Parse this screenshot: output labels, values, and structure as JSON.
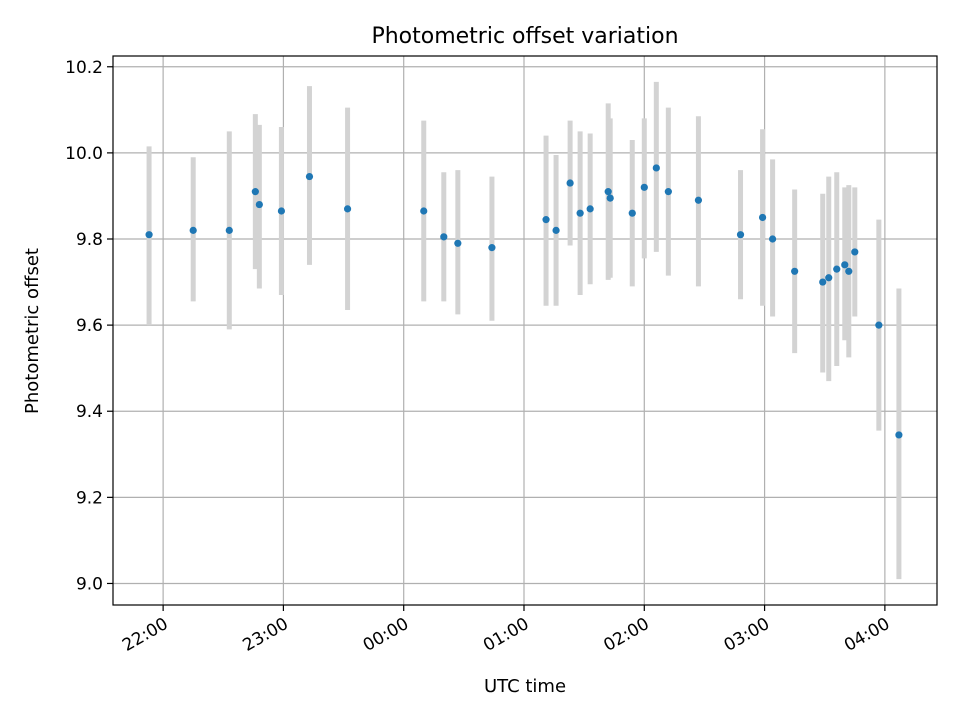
{
  "chart_data": {
    "type": "scatter",
    "title": "Photometric offset variation",
    "xlabel": "UTC time",
    "ylabel": "Photometric offset",
    "x_unit": "UTC time (hours, 21:00 = 21.0, 04:00 = 28.0)",
    "xlim": [
      "21:35",
      "04:26"
    ],
    "ylim": [
      8.95,
      10.225
    ],
    "x_ticks": [
      "22:00",
      "23:00",
      "00:00",
      "01:00",
      "02:00",
      "03:00",
      "04:00"
    ],
    "y_ticks": [
      "9.0",
      "9.2",
      "9.4",
      "9.6",
      "9.8",
      "10.0",
      "10.2"
    ],
    "grid": true,
    "colors": {
      "marker": "#1f77b4",
      "error_bar": "#d3d3d3",
      "grid": "#b0b0b0"
    },
    "series": [
      {
        "points": [
          {
            "x": "21:53",
            "y": 9.81,
            "lo": 9.6,
            "hi": 10.015
          },
          {
            "x": "22:15",
            "y": 9.82,
            "lo": 9.655,
            "hi": 9.99
          },
          {
            "x": "22:33",
            "y": 9.82,
            "lo": 9.59,
            "hi": 10.05
          },
          {
            "x": "22:46",
            "y": 9.91,
            "lo": 9.73,
            "hi": 10.09
          },
          {
            "x": "22:48",
            "y": 9.88,
            "lo": 9.685,
            "hi": 10.065
          },
          {
            "x": "22:59",
            "y": 9.865,
            "lo": 9.67,
            "hi": 10.06
          },
          {
            "x": "23:13",
            "y": 9.945,
            "lo": 9.74,
            "hi": 10.155
          },
          {
            "x": "23:32",
            "y": 9.87,
            "lo": 9.635,
            "hi": 10.105
          },
          {
            "x": "00:10",
            "y": 9.865,
            "lo": 9.655,
            "hi": 10.075
          },
          {
            "x": "00:20",
            "y": 9.805,
            "lo": 9.655,
            "hi": 9.955
          },
          {
            "x": "00:27",
            "y": 9.79,
            "lo": 9.625,
            "hi": 9.96
          },
          {
            "x": "00:44",
            "y": 9.78,
            "lo": 9.61,
            "hi": 9.945
          },
          {
            "x": "01:11",
            "y": 9.845,
            "lo": 9.645,
            "hi": 10.04
          },
          {
            "x": "01:16",
            "y": 9.82,
            "lo": 9.645,
            "hi": 9.995
          },
          {
            "x": "01:23",
            "y": 9.93,
            "lo": 9.785,
            "hi": 10.075
          },
          {
            "x": "01:28",
            "y": 9.86,
            "lo": 9.67,
            "hi": 10.05
          },
          {
            "x": "01:33",
            "y": 9.87,
            "lo": 9.695,
            "hi": 10.045
          },
          {
            "x": "01:42",
            "y": 9.91,
            "lo": 9.705,
            "hi": 10.115
          },
          {
            "x": "01:43",
            "y": 9.895,
            "lo": 9.71,
            "hi": 10.08
          },
          {
            "x": "01:54",
            "y": 9.86,
            "lo": 9.69,
            "hi": 10.03
          },
          {
            "x": "02:00",
            "y": 9.92,
            "lo": 9.755,
            "hi": 10.08
          },
          {
            "x": "02:06",
            "y": 9.965,
            "lo": 9.77,
            "hi": 10.165
          },
          {
            "x": "02:12",
            "y": 9.91,
            "lo": 9.715,
            "hi": 10.105
          },
          {
            "x": "02:27",
            "y": 9.89,
            "lo": 9.69,
            "hi": 10.085
          },
          {
            "x": "02:48",
            "y": 9.81,
            "lo": 9.66,
            "hi": 9.96
          },
          {
            "x": "02:59",
            "y": 9.85,
            "lo": 9.645,
            "hi": 10.055
          },
          {
            "x": "03:04",
            "y": 9.8,
            "lo": 9.62,
            "hi": 9.985
          },
          {
            "x": "03:15",
            "y": 9.725,
            "lo": 9.535,
            "hi": 9.915
          },
          {
            "x": "03:29",
            "y": 9.7,
            "lo": 9.49,
            "hi": 9.905
          },
          {
            "x": "03:32",
            "y": 9.71,
            "lo": 9.47,
            "hi": 9.945
          },
          {
            "x": "03:36",
            "y": 9.73,
            "lo": 9.505,
            "hi": 9.955
          },
          {
            "x": "03:40",
            "y": 9.74,
            "lo": 9.565,
            "hi": 9.92
          },
          {
            "x": "03:42",
            "y": 9.725,
            "lo": 9.525,
            "hi": 9.925
          },
          {
            "x": "03:45",
            "y": 9.77,
            "lo": 9.62,
            "hi": 9.92
          },
          {
            "x": "03:57",
            "y": 9.6,
            "lo": 9.355,
            "hi": 9.845
          },
          {
            "x": "04:07",
            "y": 9.345,
            "lo": 9.01,
            "hi": 9.685
          }
        ]
      }
    ]
  }
}
